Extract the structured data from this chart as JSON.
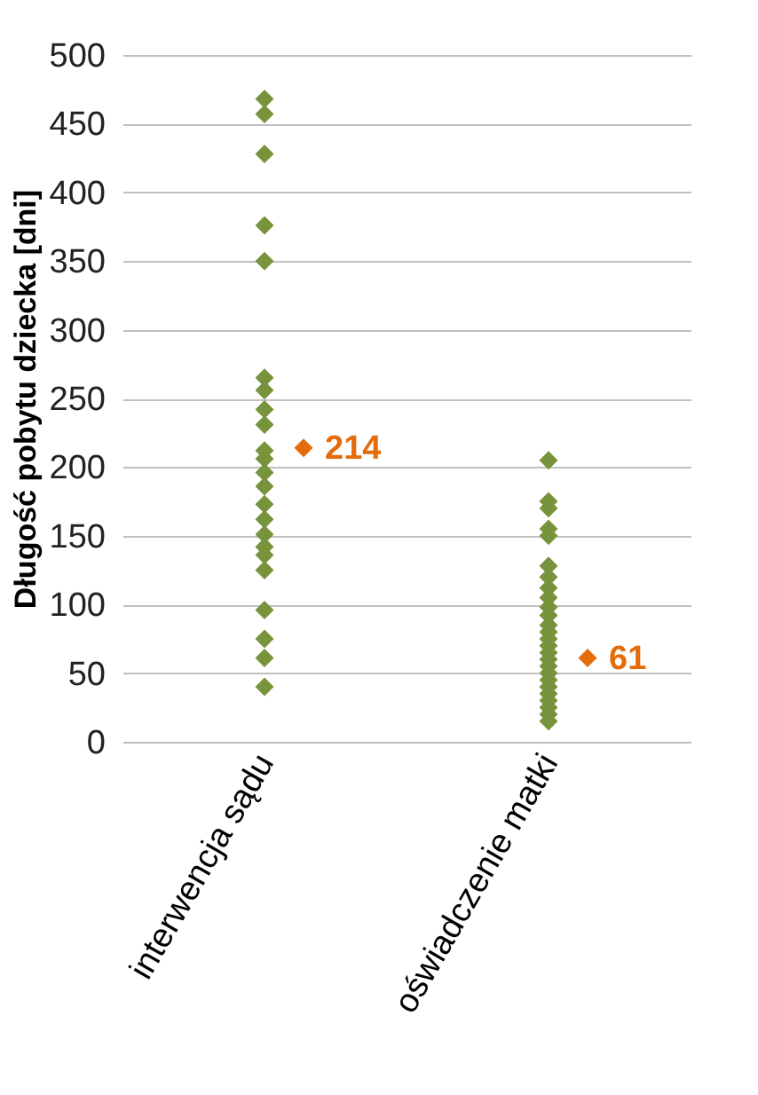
{
  "chart_data": {
    "type": "scatter",
    "ylabel": "Długość pobytu dziecka [dni]",
    "categories": [
      "interwencja sądu",
      "oświadczenie matki"
    ],
    "series": [
      {
        "color": "#77933c",
        "marker": "diamond",
        "x": [
          "interwencja sądu",
          "interwencja sądu",
          "interwencja sądu",
          "interwencja sądu",
          "interwencja sądu",
          "interwencja sądu",
          "interwencja sądu",
          "interwencja sądu",
          "interwencja sądu",
          "interwencja sądu",
          "interwencja sądu",
          "interwencja sądu",
          "interwencja sądu",
          "interwencja sądu",
          "interwencja sądu",
          "interwencja sądu",
          "interwencja sądu",
          "interwencja sądu",
          "interwencja sądu",
          "interwencja sądu",
          "interwencja sądu",
          "interwencja sądu",
          "interwencja sądu",
          "oświadczenie matki",
          "oświadczenie matki",
          "oświadczenie matki",
          "oświadczenie matki",
          "oświadczenie matki",
          "oświadczenie matki",
          "oświadczenie matki",
          "oświadczenie matki",
          "oświadczenie matki",
          "oświadczenie matki",
          "oświadczenie matki",
          "oświadczenie matki",
          "oświadczenie matki",
          "oświadczenie matki",
          "oświadczenie matki",
          "oświadczenie matki",
          "oświadczenie matki",
          "oświadczenie matki",
          "oświadczenie matki",
          "oświadczenie matki",
          "oświadczenie matki",
          "oświadczenie matki",
          "oświadczenie matki",
          "oświadczenie matki",
          "oświadczenie matki",
          "oświadczenie matki"
        ],
        "values": [
          468,
          457,
          428,
          376,
          350,
          265,
          256,
          242,
          231,
          212,
          206,
          196,
          186,
          173,
          162,
          151,
          142,
          136,
          125,
          96,
          75,
          61,
          40,
          205,
          175,
          170,
          155,
          150,
          128,
          120,
          112,
          105,
          98,
          92,
          85,
          80,
          75,
          70,
          65,
          60,
          55,
          50,
          45,
          40,
          35,
          30,
          25,
          20,
          15
        ]
      },
      {
        "color": "#e46c0a",
        "marker": "diamond",
        "x": [
          "interwencja sądu",
          "oświadczenie matki"
        ],
        "values": [
          214,
          61
        ],
        "value_labels": [
          "214",
          "61"
        ]
      }
    ],
    "ylim": [
      0,
      500
    ],
    "yticks": [
      0,
      50,
      100,
      150,
      200,
      250,
      300,
      350,
      400,
      450,
      500
    ],
    "grid": "y"
  }
}
